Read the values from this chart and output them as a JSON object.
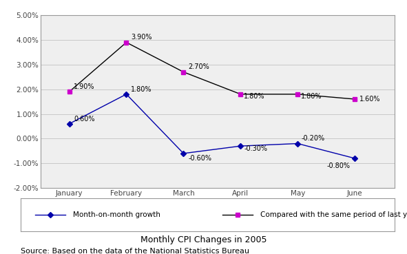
{
  "months": [
    "January",
    "February",
    "March",
    "April",
    "May",
    "June"
  ],
  "mom_values": [
    0.006,
    0.018,
    -0.006,
    -0.003,
    -0.002,
    -0.008
  ],
  "yoy_values": [
    0.019,
    0.039,
    0.027,
    0.018,
    0.018,
    0.016
  ],
  "mom_labels": [
    "0.60%",
    "1.80%",
    "-0.60%",
    "-0.30%",
    "-0.20%",
    "-0.80%"
  ],
  "yoy_labels": [
    "1.90%",
    "3.90%",
    "2.70%",
    "1.80%",
    "1.80%",
    "1.60%"
  ],
  "mom_color": "#0000AA",
  "yoy_color": "#CC00CC",
  "line_color_yoy": "#000000",
  "ylim": [
    -0.02,
    0.05
  ],
  "yticks": [
    -0.02,
    -0.01,
    0.0,
    0.01,
    0.02,
    0.03,
    0.04,
    0.05
  ],
  "ytick_labels": [
    "-2.00%",
    "-1.00%",
    "0.00%",
    "1.00%",
    "2.00%",
    "3.00%",
    "4.00%",
    "5.00%"
  ],
  "title": "Monthly CPI Changes in 2005",
  "source": "Source: Based on the data of the National Statistics Bureau",
  "legend_mom": "Month-on-month growth",
  "legend_yoy": "Compared with the same period of last year",
  "bg_color": "#FFFFFF",
  "grid_color": "#C8C8C8",
  "plot_bg_color": "#EFEFEF",
  "outer_bg": "#E8E8E8"
}
